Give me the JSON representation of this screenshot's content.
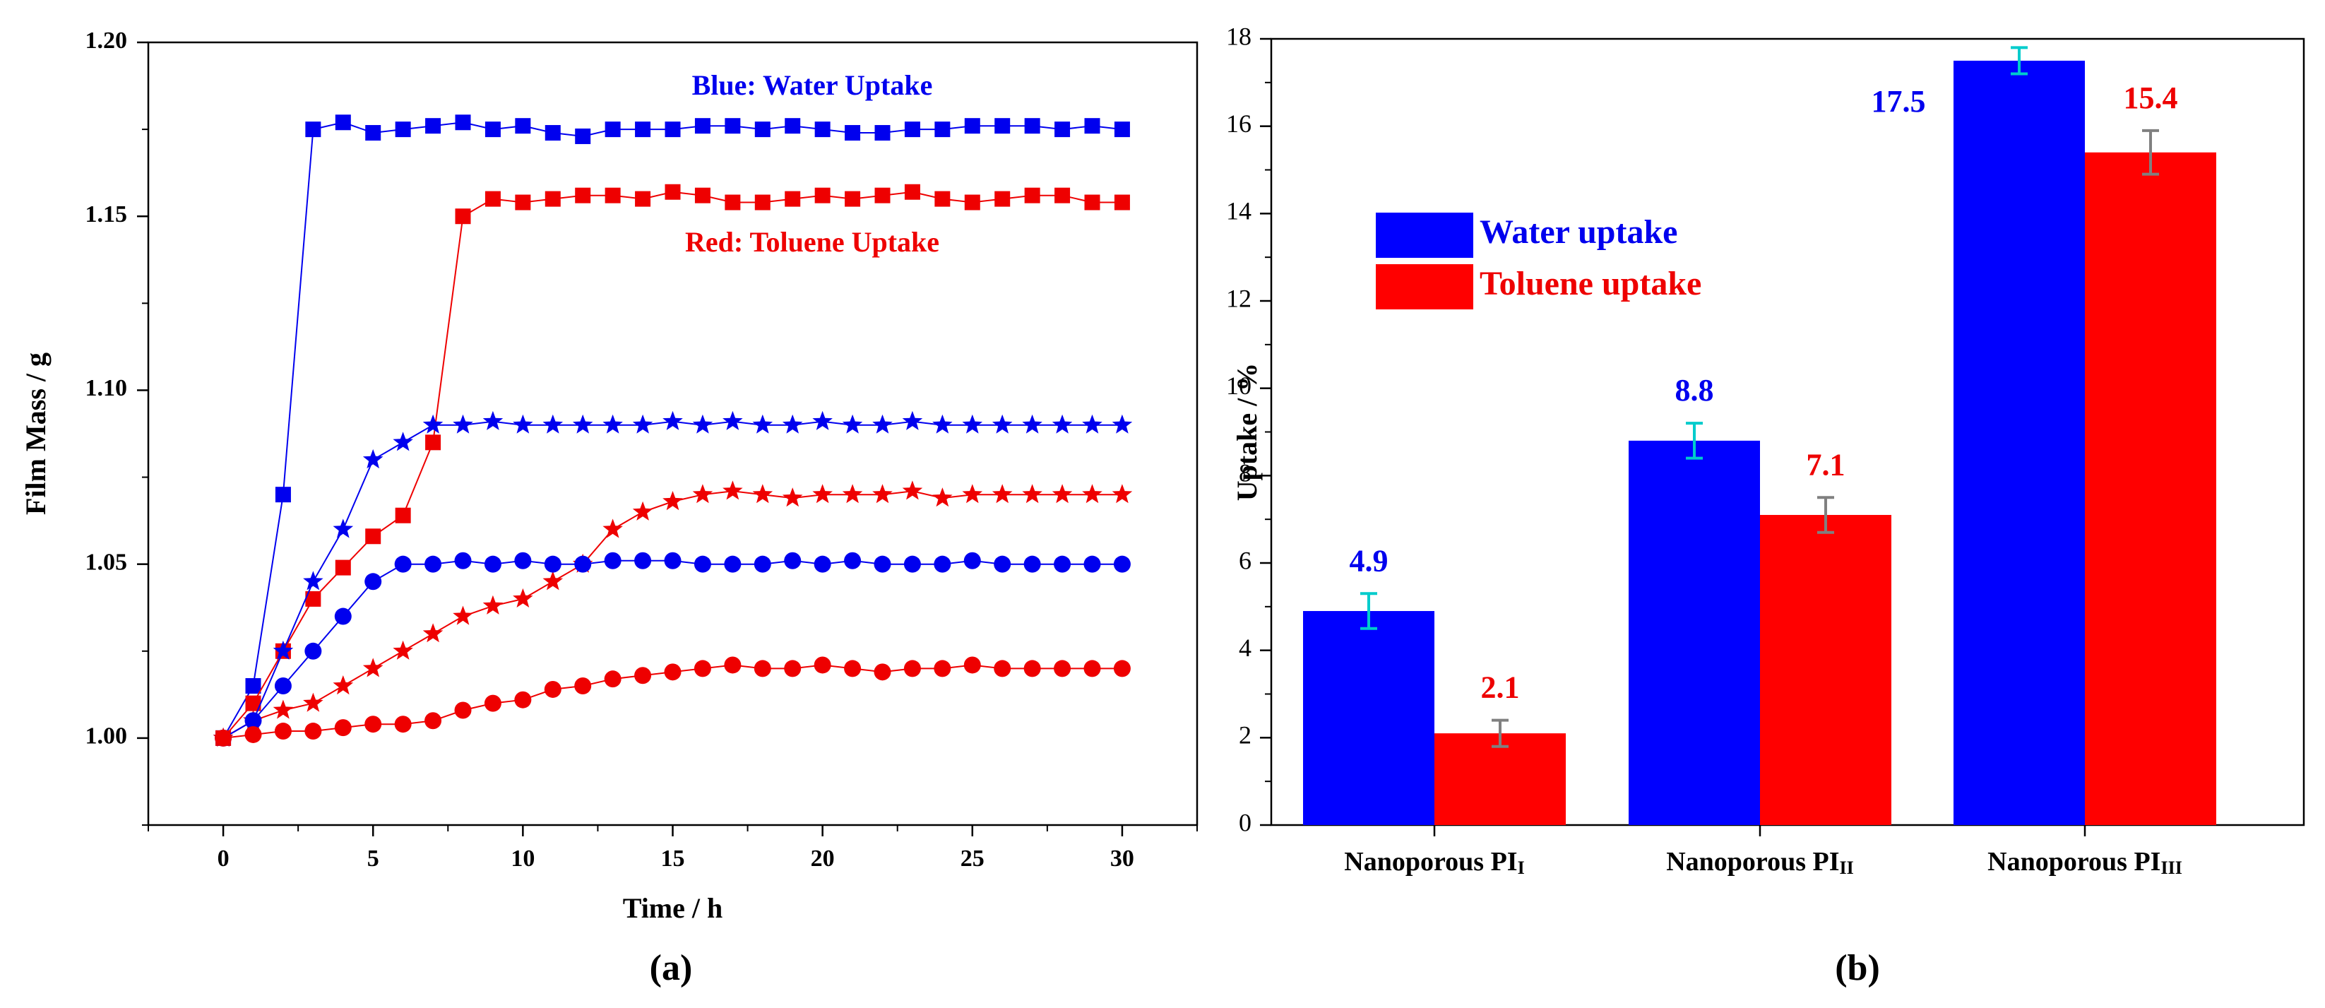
{
  "colors": {
    "water": "#0000ee",
    "toluene": "#ee0000",
    "water_fill": "#0000ff",
    "toluene_fill": "#ff0000",
    "error_water": "#00cccc",
    "error_toluene": "#808080",
    "axis": "#000000"
  },
  "chart_data": [
    {
      "type": "line",
      "panel_label": "(a)",
      "title": "",
      "xlabel": "Time / h",
      "ylabel": "Film Mass / g",
      "xlim": [
        -2.5,
        32.5
      ],
      "ylim": [
        0.975,
        1.2
      ],
      "xticks": [
        0,
        5,
        10,
        15,
        20,
        25,
        30
      ],
      "xtick_labels": [
        "0",
        "5",
        "10",
        "15",
        "20",
        "25",
        "30"
      ],
      "yticks": [
        1.0,
        1.05,
        1.1,
        1.15,
        1.2
      ],
      "ytick_labels": [
        "1.00",
        "1.05",
        "1.10",
        "1.15",
        "1.20"
      ],
      "annotations": [
        {
          "text": "Blue: Water Uptake",
          "color": "#0000ee"
        },
        {
          "text": "Red: Toluene Uptake",
          "color": "#ee0000"
        }
      ],
      "series": [
        {
          "name": "Water, square markers",
          "color": "#0000ee",
          "marker": "square",
          "x": [
            0,
            1,
            2,
            3,
            4,
            5,
            6,
            7,
            8,
            9,
            10,
            11,
            12,
            13,
            14,
            15,
            16,
            17,
            18,
            19,
            20,
            21,
            22,
            23,
            24,
            25,
            26,
            27,
            28,
            29,
            30
          ],
          "y": [
            1.0,
            1.015,
            1.07,
            1.175,
            1.177,
            1.174,
            1.175,
            1.176,
            1.177,
            1.175,
            1.176,
            1.174,
            1.173,
            1.175,
            1.175,
            1.175,
            1.176,
            1.176,
            1.175,
            1.176,
            1.175,
            1.174,
            1.174,
            1.175,
            1.175,
            1.176,
            1.176,
            1.176,
            1.175,
            1.176,
            1.175
          ]
        },
        {
          "name": "Toluene, square markers",
          "color": "#ee0000",
          "marker": "square",
          "x": [
            0,
            1,
            2,
            3,
            4,
            5,
            6,
            7,
            8,
            9,
            10,
            11,
            12,
            13,
            14,
            15,
            16,
            17,
            18,
            19,
            20,
            21,
            22,
            23,
            24,
            25,
            26,
            27,
            28,
            29,
            30
          ],
          "y": [
            1.0,
            1.01,
            1.025,
            1.04,
            1.049,
            1.058,
            1.064,
            1.085,
            1.15,
            1.155,
            1.154,
            1.155,
            1.156,
            1.156,
            1.155,
            1.157,
            1.156,
            1.154,
            1.154,
            1.155,
            1.156,
            1.155,
            1.156,
            1.157,
            1.155,
            1.154,
            1.155,
            1.156,
            1.156,
            1.154,
            1.154
          ]
        },
        {
          "name": "Water, star markers",
          "color": "#0000ee",
          "marker": "star",
          "x": [
            0,
            1,
            2,
            3,
            4,
            5,
            6,
            7,
            8,
            9,
            10,
            11,
            12,
            13,
            14,
            15,
            16,
            17,
            18,
            19,
            20,
            21,
            22,
            23,
            24,
            25,
            26,
            27,
            28,
            29,
            30
          ],
          "y": [
            1.0,
            1.005,
            1.025,
            1.045,
            1.06,
            1.08,
            1.085,
            1.09,
            1.09,
            1.091,
            1.09,
            1.09,
            1.09,
            1.09,
            1.09,
            1.091,
            1.09,
            1.091,
            1.09,
            1.09,
            1.091,
            1.09,
            1.09,
            1.091,
            1.09,
            1.09,
            1.09,
            1.09,
            1.09,
            1.09,
            1.09
          ]
        },
        {
          "name": "Toluene, star markers",
          "color": "#ee0000",
          "marker": "star",
          "x": [
            0,
            1,
            2,
            3,
            4,
            5,
            6,
            7,
            8,
            9,
            10,
            11,
            12,
            13,
            14,
            15,
            16,
            17,
            18,
            19,
            20,
            21,
            22,
            23,
            24,
            25,
            26,
            27,
            28,
            29,
            30
          ],
          "y": [
            1.0,
            1.005,
            1.008,
            1.01,
            1.015,
            1.02,
            1.025,
            1.03,
            1.035,
            1.038,
            1.04,
            1.045,
            1.05,
            1.06,
            1.065,
            1.068,
            1.07,
            1.071,
            1.07,
            1.069,
            1.07,
            1.07,
            1.07,
            1.071,
            1.069,
            1.07,
            1.07,
            1.07,
            1.07,
            1.07,
            1.07
          ]
        },
        {
          "name": "Water, circle markers",
          "color": "#0000ee",
          "marker": "circle",
          "x": [
            0,
            1,
            2,
            3,
            4,
            5,
            6,
            7,
            8,
            9,
            10,
            11,
            12,
            13,
            14,
            15,
            16,
            17,
            18,
            19,
            20,
            21,
            22,
            23,
            24,
            25,
            26,
            27,
            28,
            29,
            30
          ],
          "y": [
            1.0,
            1.005,
            1.015,
            1.025,
            1.035,
            1.045,
            1.05,
            1.05,
            1.051,
            1.05,
            1.051,
            1.05,
            1.05,
            1.051,
            1.051,
            1.051,
            1.05,
            1.05,
            1.05,
            1.051,
            1.05,
            1.051,
            1.05,
            1.05,
            1.05,
            1.051,
            1.05,
            1.05,
            1.05,
            1.05,
            1.05
          ]
        },
        {
          "name": "Toluene, circle markers",
          "color": "#ee0000",
          "marker": "circle",
          "x": [
            0,
            1,
            2,
            3,
            4,
            5,
            6,
            7,
            8,
            9,
            10,
            11,
            12,
            13,
            14,
            15,
            16,
            17,
            18,
            19,
            20,
            21,
            22,
            23,
            24,
            25,
            26,
            27,
            28,
            29,
            30
          ],
          "y": [
            1.0,
            1.001,
            1.002,
            1.002,
            1.003,
            1.004,
            1.004,
            1.005,
            1.008,
            1.01,
            1.011,
            1.014,
            1.015,
            1.017,
            1.018,
            1.019,
            1.02,
            1.021,
            1.02,
            1.02,
            1.021,
            1.02,
            1.019,
            1.02,
            1.02,
            1.021,
            1.02,
            1.02,
            1.02,
            1.02,
            1.02
          ]
        }
      ]
    },
    {
      "type": "bar",
      "panel_label": "(b)",
      "title": "",
      "xlabel": "",
      "ylabel": "Uptake / %",
      "ylim": [
        0,
        18
      ],
      "yticks": [
        0,
        2,
        4,
        6,
        8,
        10,
        12,
        14,
        16,
        18
      ],
      "ytick_labels": [
        "0",
        "2",
        "4",
        "6",
        "8",
        "10",
        "12",
        "14",
        "16",
        "18"
      ],
      "categories": [
        {
          "main": "Nanoporous PI",
          "sub": "I"
        },
        {
          "main": "Nanoporous PI",
          "sub": "II"
        },
        {
          "main": "Nanoporous PI",
          "sub": "III"
        }
      ],
      "legend_position": "upper-left",
      "series": [
        {
          "name": "Water uptake",
          "color": "#0000ff",
          "label_color": "#0000ee",
          "error_color": "#00cccc",
          "values": [
            4.9,
            8.8,
            17.5
          ],
          "value_labels": [
            "4.9",
            "8.8",
            "17.5"
          ],
          "errors": [
            0.4,
            0.4,
            0.3
          ]
        },
        {
          "name": "Toluene uptake",
          "color": "#ff0000",
          "label_color": "#ee0000",
          "error_color": "#808080",
          "values": [
            2.1,
            7.1,
            15.4
          ],
          "value_labels": [
            "2.1",
            "7.1",
            "15.4"
          ],
          "errors": [
            0.3,
            0.4,
            0.5
          ]
        }
      ]
    }
  ]
}
